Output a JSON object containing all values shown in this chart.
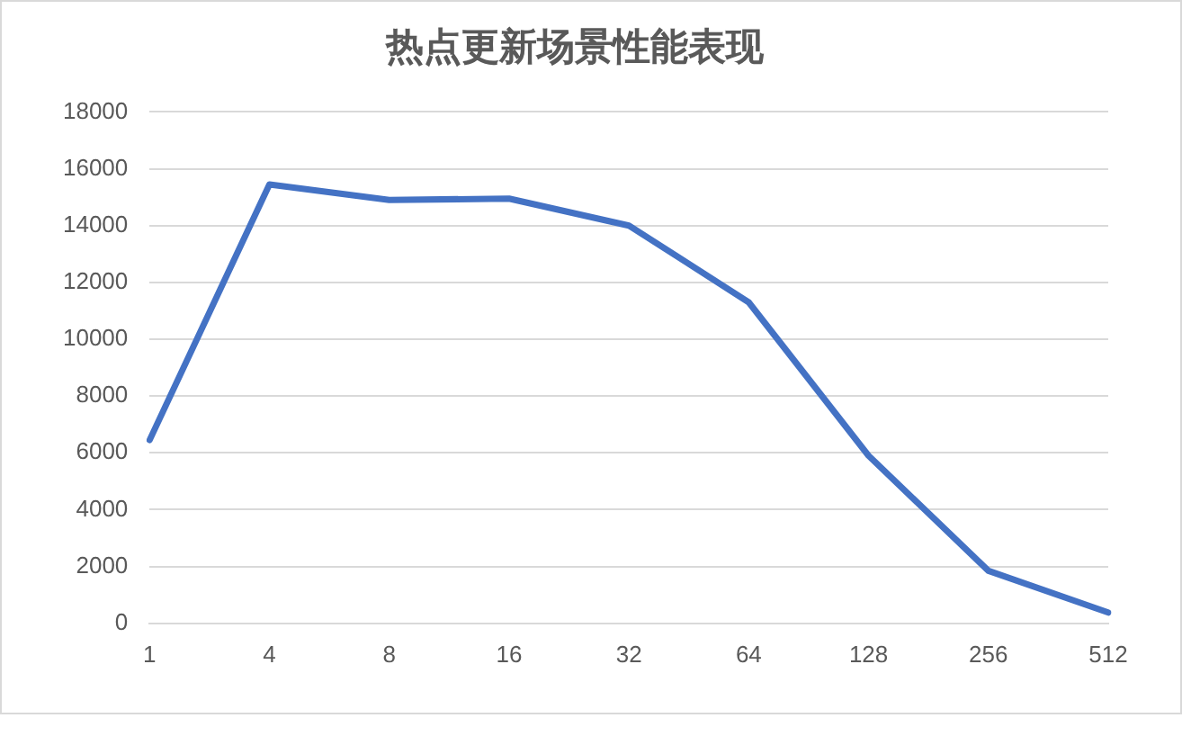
{
  "chart_data": {
    "type": "line",
    "title": "热点更新场景性能表现",
    "categories": [
      "1",
      "4",
      "8",
      "16",
      "32",
      "64",
      "128",
      "256",
      "512"
    ],
    "series": [
      {
        "color": "#4472c4",
        "values": [
          6450,
          15450,
          14900,
          14950,
          14000,
          11300,
          5900,
          1850,
          380
        ]
      }
    ],
    "ylim": [
      0,
      18000
    ],
    "yticks": [
      0,
      2000,
      4000,
      6000,
      8000,
      10000,
      12000,
      14000,
      16000,
      18000
    ],
    "grid": "y",
    "legend": false,
    "marker": "none",
    "line_style": "solid"
  }
}
